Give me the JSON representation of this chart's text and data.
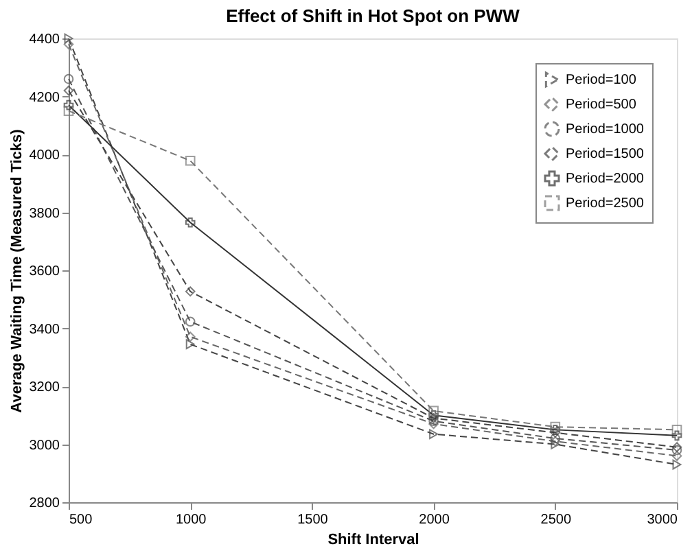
{
  "chart_data": {
    "type": "line",
    "title": "Effect of Shift in Hot Spot on PWW",
    "xlabel": "Shift Interval",
    "ylabel": "Average Waiting Time (Measured Ticks)",
    "x": [
      500,
      1000,
      2000,
      2500,
      3000
    ],
    "xlim": [
      500,
      3000
    ],
    "xticks": [
      500,
      1000,
      1500,
      2000,
      2500,
      3000
    ],
    "ylim": [
      2800,
      4400
    ],
    "yticks": [
      2800,
      3000,
      3200,
      3400,
      3600,
      3800,
      4000,
      4200,
      4400
    ],
    "grid": false,
    "legend": "top right",
    "series": [
      {
        "name": "Period=100",
        "color": "#444444",
        "marker": "triangle",
        "line_style": "dashed",
        "values": [
          4400,
          3345,
          3035,
          3000,
          2930
        ]
      },
      {
        "name": "Period=500",
        "color": "#666666",
        "marker": "diamond",
        "line_style": "dashed",
        "values": [
          4380,
          3371,
          3070,
          3010,
          2960
        ]
      },
      {
        "name": "Period=1000",
        "color": "#555555",
        "marker": "circle",
        "line_style": "dashed",
        "values": [
          4260,
          3423,
          3080,
          3020,
          2980
        ]
      },
      {
        "name": "Period=1500",
        "color": "#444444",
        "marker": "diamond",
        "line_style": "dashed",
        "values": [
          4220,
          3527,
          3090,
          3040,
          2990
        ]
      },
      {
        "name": "Period=2000",
        "color": "#333333",
        "marker": "cross",
        "line_style": "solid",
        "values": [
          4170,
          3765,
          3100,
          3050,
          3030
        ]
      },
      {
        "name": "Period=2500",
        "color": "#777777",
        "marker": "square",
        "line_style": "dashed",
        "values": [
          4150,
          3978,
          3115,
          3060,
          3050
        ]
      }
    ]
  }
}
